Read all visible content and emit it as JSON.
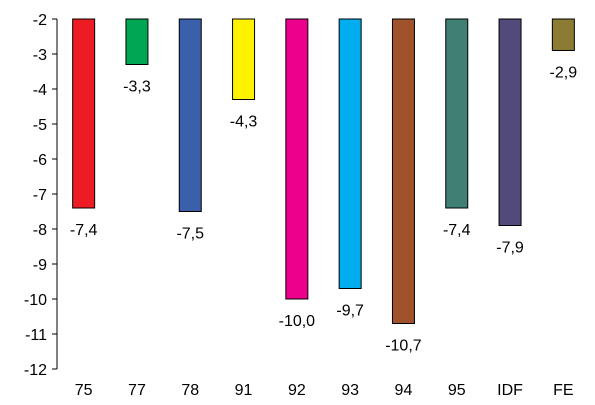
{
  "chart_data": {
    "type": "bar",
    "categories": [
      "75",
      "77",
      "78",
      "91",
      "92",
      "93",
      "94",
      "95",
      "IDF",
      "FE"
    ],
    "values": [
      -7.4,
      -3.3,
      -7.5,
      -4.3,
      -10.0,
      -9.7,
      -10.7,
      -7.4,
      -7.9,
      -2.9
    ],
    "data_labels": [
      "-7,4",
      "-3,3",
      "-7,5",
      "-4,3",
      "-10,0",
      "-9,7",
      "-10,7",
      "-7,4",
      "-7,9",
      "-2,9"
    ],
    "colors": [
      "#ed1c24",
      "#00a651",
      "#3a5fab",
      "#fff200",
      "#ec008c",
      "#00aeef",
      "#a0522d",
      "#3f7f74",
      "#524a7a",
      "#8c7b33"
    ],
    "yticks": [
      -2,
      -3,
      -4,
      -5,
      -6,
      -7,
      -8,
      -9,
      -10,
      -11,
      -12
    ],
    "ylim": [
      -12,
      -2
    ],
    "baseline": -2,
    "title": "",
    "xlabel": "",
    "ylabel": "",
    "grid": false,
    "legend": "none"
  }
}
